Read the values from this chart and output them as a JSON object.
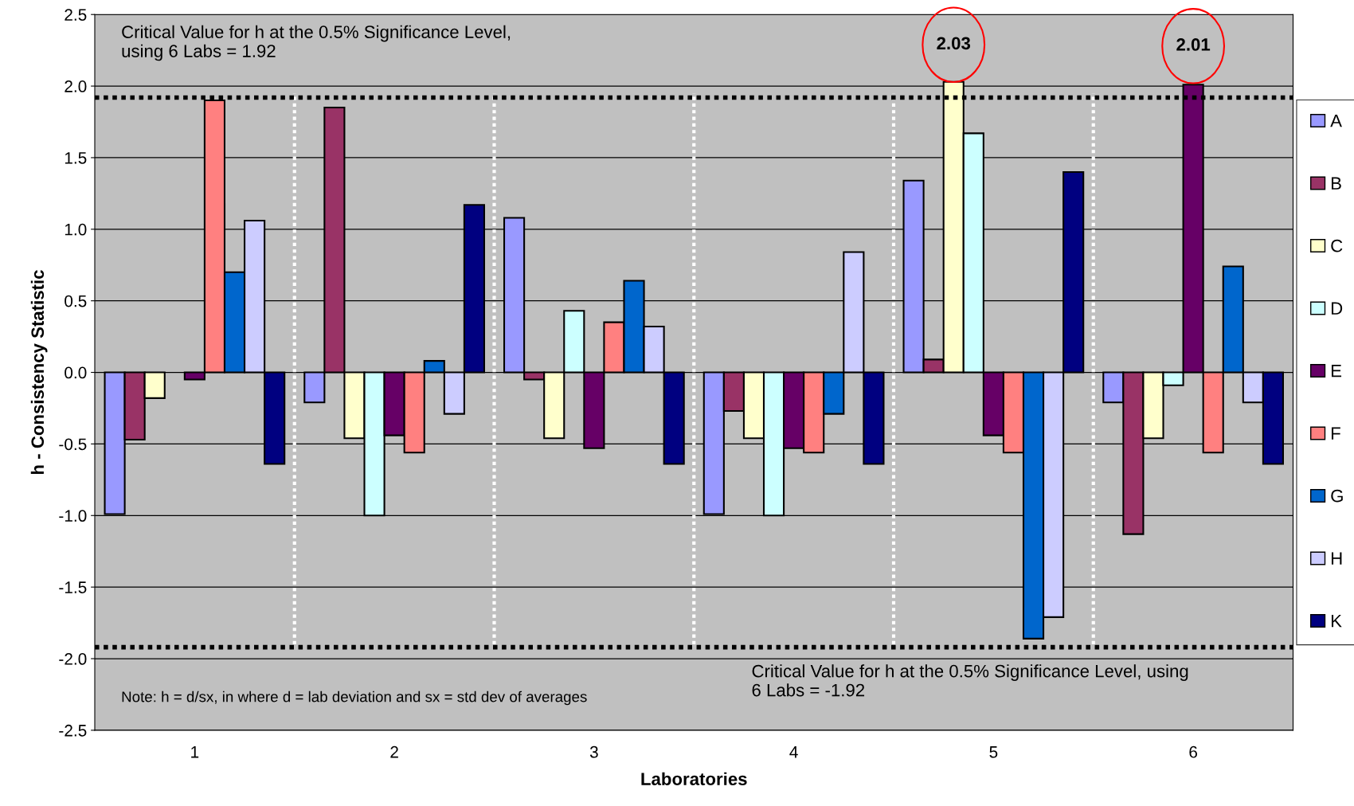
{
  "chart_data": {
    "type": "bar",
    "xlabel": "Laboratories",
    "ylabel": "h - Consistency Statistic",
    "categories": [
      "1",
      "2",
      "3",
      "4",
      "5",
      "6"
    ],
    "series": [
      {
        "name": "A",
        "color": "#9999ff",
        "values": [
          -0.99,
          -0.21,
          1.08,
          -0.99,
          1.34,
          -0.21
        ]
      },
      {
        "name": "B",
        "color": "#993366",
        "values": [
          -0.47,
          1.85,
          -0.05,
          -0.27,
          0.09,
          -1.13
        ]
      },
      {
        "name": "C",
        "color": "#ffffcc",
        "values": [
          -0.18,
          -0.46,
          -0.46,
          -0.46,
          2.03,
          -0.46
        ]
      },
      {
        "name": "D",
        "color": "#ccffff",
        "values": [
          null,
          -1.0,
          0.43,
          -1.0,
          1.67,
          -0.09
        ]
      },
      {
        "name": "E",
        "color": "#660066",
        "values": [
          -0.05,
          -0.44,
          -0.53,
          -0.53,
          -0.44,
          2.01
        ]
      },
      {
        "name": "F",
        "color": "#ff8080",
        "values": [
          1.9,
          -0.56,
          0.35,
          -0.56,
          -0.56,
          -0.56
        ]
      },
      {
        "name": "G",
        "color": "#0066cc",
        "values": [
          0.7,
          0.08,
          0.64,
          -0.29,
          -1.86,
          0.74
        ]
      },
      {
        "name": "H",
        "color": "#ccccff",
        "values": [
          1.06,
          -0.29,
          0.32,
          0.84,
          -1.71,
          -0.21
        ]
      },
      {
        "name": "K",
        "color": "#000080",
        "values": [
          -0.64,
          1.17,
          -0.64,
          -0.64,
          1.4,
          -0.64
        ]
      }
    ],
    "ylim": [
      -2.5,
      2.5
    ],
    "yticks": [
      {
        "value": 2.5,
        "label": "2.5"
      },
      {
        "value": 2.0,
        "label": "2.0"
      },
      {
        "value": 1.5,
        "label": "1.5"
      },
      {
        "value": 1.0,
        "label": "1.0"
      },
      {
        "value": 0.5,
        "label": "0.5"
      },
      {
        "value": 0.0,
        "label": "0.0"
      },
      {
        "value": -0.5,
        "label": "-0.5"
      },
      {
        "value": -1.0,
        "label": "-1.0"
      },
      {
        "value": -1.5,
        "label": "-1.5"
      },
      {
        "value": -2.0,
        "label": "-2.0"
      },
      {
        "value": -2.5,
        "label": "-2.5"
      }
    ],
    "grid": "y",
    "legend": "right",
    "ref_lines": [
      {
        "axis": "y",
        "value": 1.92,
        "label": "Critical Value for h at the 0.5% Significance Level,\nusing 6 Labs = 1.92",
        "color": "#000000",
        "line_style": "dotted"
      },
      {
        "axis": "y",
        "value": -1.92,
        "label": "Critical Value for h at the 0.5% Significance Level, using\n6 Labs = -1.92",
        "color": "#000000",
        "line_style": "dotted"
      }
    ],
    "annotations": [
      "2.03",
      "2.01",
      "Note: h = d/sx, in where d = lab deviation and sx = std dev of averages"
    ]
  }
}
